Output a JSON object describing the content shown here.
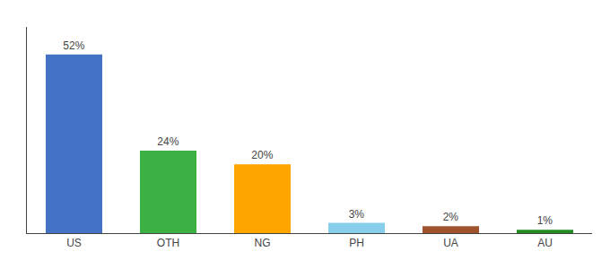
{
  "chart_data": {
    "type": "bar",
    "categories": [
      "US",
      "OTH",
      "NG",
      "PH",
      "UA",
      "AU"
    ],
    "values": [
      52,
      24,
      20,
      3,
      2,
      1
    ],
    "value_labels": [
      "52%",
      "24%",
      "20%",
      "3%",
      "2%",
      "1%"
    ],
    "data_labels": true,
    "colors": [
      "#4472C4",
      "#3CB043",
      "#FFA500",
      "#87CEEB",
      "#A0522D",
      "#228B22"
    ],
    "ylim": [
      0,
      60
    ],
    "grid": false,
    "tick_labels": "x"
  }
}
